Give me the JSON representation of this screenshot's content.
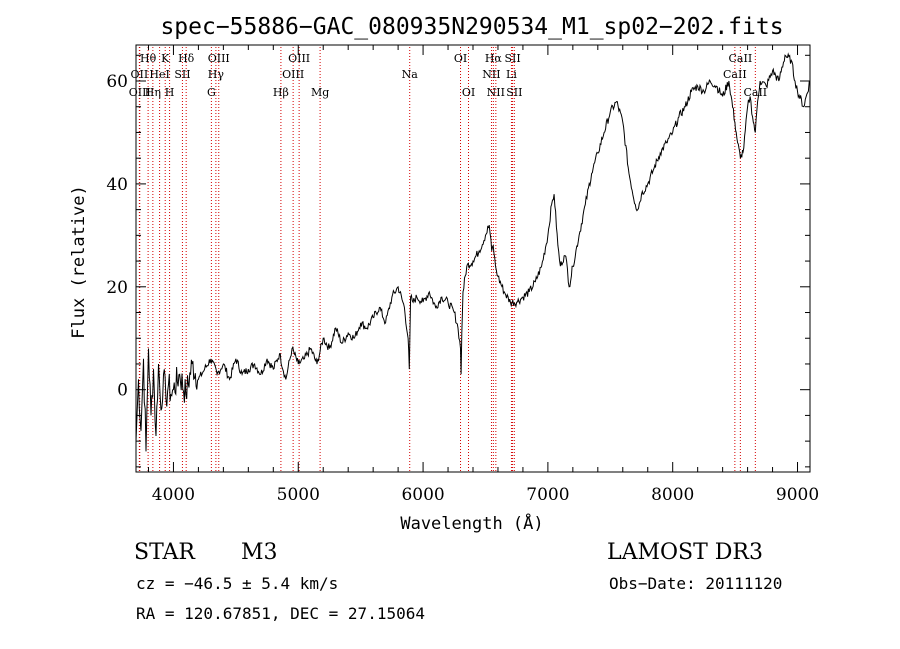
{
  "chart_data": {
    "type": "line",
    "title": "spec−55886−GAC_080935N290534_M1_sp02−202.fits",
    "xlabel": "Wavelength (Å)",
    "ylabel": "Flux (relative)",
    "xlim": [
      3700,
      9100
    ],
    "ylim": [
      -16,
      67
    ],
    "xticks": [
      4000,
      5000,
      6000,
      7000,
      8000,
      9000
    ],
    "yticks": [
      0,
      20,
      40,
      60
    ],
    "series": [
      {
        "name": "flux",
        "x": [
          3700,
          3720,
          3740,
          3760,
          3780,
          3800,
          3820,
          3840,
          3860,
          3880,
          3900,
          3920,
          3940,
          3960,
          3980,
          4000,
          4050,
          4100,
          4150,
          4200,
          4250,
          4300,
          4350,
          4400,
          4450,
          4500,
          4550,
          4600,
          4650,
          4700,
          4750,
          4800,
          4850,
          4900,
          4950,
          5000,
          5050,
          5100,
          5150,
          5200,
          5250,
          5300,
          5350,
          5400,
          5450,
          5500,
          5550,
          5600,
          5650,
          5700,
          5750,
          5800,
          5850,
          5880,
          5890,
          5900,
          5920,
          5950,
          6000,
          6050,
          6100,
          6150,
          6200,
          6250,
          6280,
          6300,
          6305,
          6310,
          6320,
          6350,
          6400,
          6450,
          6500,
          6530,
          6550,
          6562,
          6580,
          6600,
          6650,
          6700,
          6750,
          6800,
          6850,
          6900,
          6950,
          7000,
          7030,
          7050,
          7080,
          7100,
          7130,
          7150,
          7170,
          7200,
          7250,
          7300,
          7350,
          7400,
          7450,
          7500,
          7550,
          7600,
          7650,
          7700,
          7720,
          7750,
          7800,
          7850,
          7900,
          7950,
          8000,
          8050,
          8100,
          8150,
          8200,
          8250,
          8300,
          8350,
          8400,
          8450,
          8498,
          8520,
          8542,
          8570,
          8600,
          8620,
          8640,
          8662,
          8680,
          8700,
          8750,
          8800,
          8850,
          8900,
          8950,
          8980,
          9000,
          9050,
          9100
        ],
        "values": [
          -10,
          2,
          -8,
          6,
          -12,
          8,
          -5,
          4,
          -9,
          5,
          -4,
          3,
          -2,
          1,
          -1,
          0,
          3,
          -1,
          5,
          2,
          4,
          6,
          3,
          5,
          2,
          6,
          3,
          4,
          5,
          3,
          6,
          4,
          7,
          2,
          8,
          5,
          6,
          8,
          5,
          10,
          8,
          12,
          9,
          11,
          10,
          13,
          12,
          14,
          16,
          13,
          18,
          20,
          16,
          10,
          4,
          18,
          17,
          18,
          17,
          19,
          16,
          18,
          17,
          15,
          12,
          8,
          3,
          11,
          19,
          24,
          25,
          27,
          30,
          32,
          27,
          28,
          24,
          22,
          19,
          17,
          17,
          18,
          19,
          21,
          24,
          30,
          36,
          38,
          28,
          24,
          26,
          25,
          20,
          24,
          30,
          36,
          42,
          46,
          50,
          54,
          56,
          52,
          42,
          36,
          35,
          38,
          40,
          43,
          46,
          48,
          50,
          53,
          55,
          58,
          59,
          58,
          60,
          59,
          57,
          60,
          52,
          48,
          45,
          47,
          55,
          57,
          53,
          50,
          56,
          60,
          59,
          62,
          60,
          65,
          64,
          60,
          58,
          55,
          60
        ]
      }
    ],
    "line_markers": [
      {
        "wavelength": 3797,
        "label": "Hθ",
        "row": 1
      },
      {
        "wavelength": 3727,
        "label": "OII",
        "row": 2
      },
      {
        "wavelength": 3730,
        "label": "OIII",
        "row": 3
      },
      {
        "wavelength": 3835,
        "label": "Hη",
        "row": 3
      },
      {
        "wavelength": 3889,
        "label": "HeI",
        "row": 2
      },
      {
        "wavelength": 3934,
        "label": "K",
        "row": 1
      },
      {
        "wavelength": 3969,
        "label": "H",
        "row": 3
      },
      {
        "wavelength": 4072,
        "label": "SII",
        "row": 2
      },
      {
        "wavelength": 4102,
        "label": "Hδ",
        "row": 1
      },
      {
        "wavelength": 4304,
        "label": "G",
        "row": 3
      },
      {
        "wavelength": 4340,
        "label": "Hγ",
        "row": 2
      },
      {
        "wavelength": 4363,
        "label": "OIII",
        "row": 1
      },
      {
        "wavelength": 4861,
        "label": "Hβ",
        "row": 3
      },
      {
        "wavelength": 4959,
        "label": "OIII",
        "row": 2
      },
      {
        "wavelength": 5007,
        "label": "OIII",
        "row": 1
      },
      {
        "wavelength": 5175,
        "label": "Mg",
        "row": 3
      },
      {
        "wavelength": 5893,
        "label": "Na",
        "row": 2
      },
      {
        "wavelength": 6300,
        "label": "OI",
        "row": 1
      },
      {
        "wavelength": 6364,
        "label": "OI",
        "row": 3
      },
      {
        "wavelength": 6548,
        "label": "NII",
        "row": 2
      },
      {
        "wavelength": 6563,
        "label": "Hα",
        "row": 1
      },
      {
        "wavelength": 6583,
        "label": "NII",
        "row": 3
      },
      {
        "wavelength": 6708,
        "label": "Li",
        "row": 2
      },
      {
        "wavelength": 6717,
        "label": "SII",
        "row": 1
      },
      {
        "wavelength": 6731,
        "label": "SII",
        "row": 3
      },
      {
        "wavelength": 8498,
        "label": "CaII",
        "row": 2
      },
      {
        "wavelength": 8542,
        "label": "CaII",
        "row": 1
      },
      {
        "wavelength": 8662,
        "label": "CaII",
        "row": 3
      }
    ],
    "marker_color": "#d40000",
    "line_color": "#000000"
  },
  "info": {
    "object_class": "STAR",
    "subclass": "M3",
    "survey": "LAMOST DR3",
    "cz": "cz = −46.5 ± 5.4 km/s",
    "obs_date": "Obs−Date: 20111120",
    "coords": "RA = 120.67851, DEC =  27.15064"
  }
}
